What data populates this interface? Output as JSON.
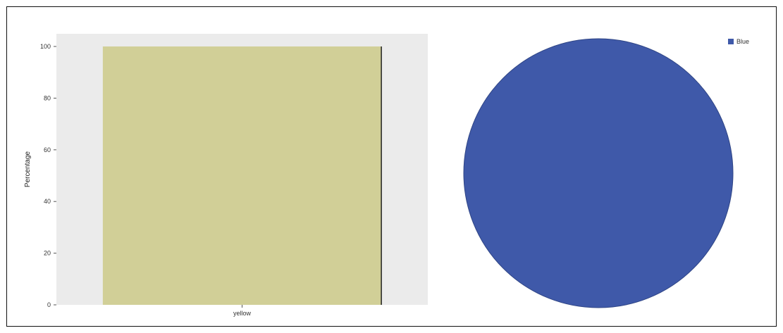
{
  "chart_data": [
    {
      "type": "bar",
      "title": "",
      "xlabel": "",
      "ylabel": "Percentage",
      "ylim": [
        0,
        100
      ],
      "yticks": [
        0,
        20,
        40,
        60,
        80,
        100
      ],
      "ytick_labels": [
        "0",
        "20",
        "40",
        "60",
        "80",
        "100"
      ],
      "categories": [
        "yellow"
      ],
      "values": [
        100
      ],
      "bar_color": "#d1cf97",
      "panel_background": "#ebebeb",
      "grid": false
    },
    {
      "type": "pie",
      "title": "",
      "labels": [
        "Blue"
      ],
      "values": [
        100
      ],
      "colors": [
        "#3f59a9"
      ],
      "legend": "top-right"
    }
  ]
}
